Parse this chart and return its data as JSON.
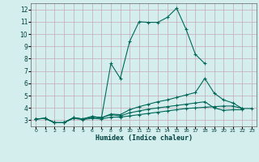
{
  "background_color": "#d4eeee",
  "grid_color": "#b8d8d8",
  "line_color": "#006858",
  "xlabel": "Humidex (Indice chaleur)",
  "xlim": [
    -0.5,
    23.5
  ],
  "ylim": [
    2.5,
    12.5
  ],
  "yticks": [
    3,
    4,
    5,
    6,
    7,
    8,
    9,
    10,
    11,
    12
  ],
  "xticks": [
    0,
    1,
    2,
    3,
    4,
    5,
    6,
    7,
    8,
    9,
    10,
    11,
    12,
    13,
    14,
    15,
    16,
    17,
    18,
    19,
    20,
    21,
    22,
    23
  ],
  "series": [
    {
      "x": [
        0,
        1,
        2,
        3,
        4,
        5,
        6,
        7,
        8,
        9,
        10,
        11,
        12,
        13,
        14,
        15,
        16,
        17,
        18
      ],
      "y": [
        3.1,
        3.15,
        2.8,
        2.8,
        3.2,
        3.1,
        3.3,
        3.2,
        7.6,
        6.4,
        9.4,
        11.0,
        10.95,
        10.95,
        11.35,
        12.1,
        10.4,
        8.35,
        7.6
      ]
    },
    {
      "x": [
        0,
        1,
        2,
        3,
        4,
        5,
        6,
        7,
        8,
        9,
        10,
        11,
        12,
        13,
        14,
        15,
        16,
        17,
        18,
        19,
        20,
        21,
        22
      ],
      "y": [
        3.1,
        3.15,
        2.8,
        2.8,
        3.2,
        3.1,
        3.3,
        3.2,
        3.5,
        3.45,
        3.85,
        4.1,
        4.3,
        4.5,
        4.65,
        4.85,
        5.05,
        5.25,
        6.4,
        5.2,
        4.65,
        4.4,
        3.95
      ]
    },
    {
      "x": [
        0,
        1,
        2,
        3,
        4,
        5,
        6,
        7,
        8,
        9,
        10,
        11,
        12,
        13,
        14,
        15,
        16,
        17,
        18,
        19,
        20,
        21,
        22
      ],
      "y": [
        3.1,
        3.15,
        2.8,
        2.8,
        3.2,
        3.1,
        3.25,
        3.2,
        3.45,
        3.35,
        3.6,
        3.75,
        3.9,
        4.0,
        4.1,
        4.2,
        4.3,
        4.4,
        4.5,
        4.0,
        3.8,
        3.85,
        3.85
      ]
    },
    {
      "x": [
        0,
        1,
        2,
        3,
        4,
        5,
        6,
        7,
        8,
        9,
        10,
        11,
        12,
        13,
        14,
        15,
        16,
        17,
        18,
        19,
        20,
        21,
        22,
        23
      ],
      "y": [
        3.1,
        3.15,
        2.8,
        2.8,
        3.15,
        3.05,
        3.15,
        3.1,
        3.25,
        3.25,
        3.35,
        3.45,
        3.55,
        3.65,
        3.75,
        3.85,
        3.95,
        4.0,
        4.05,
        4.1,
        4.15,
        4.15,
        3.95,
        3.95
      ]
    }
  ]
}
